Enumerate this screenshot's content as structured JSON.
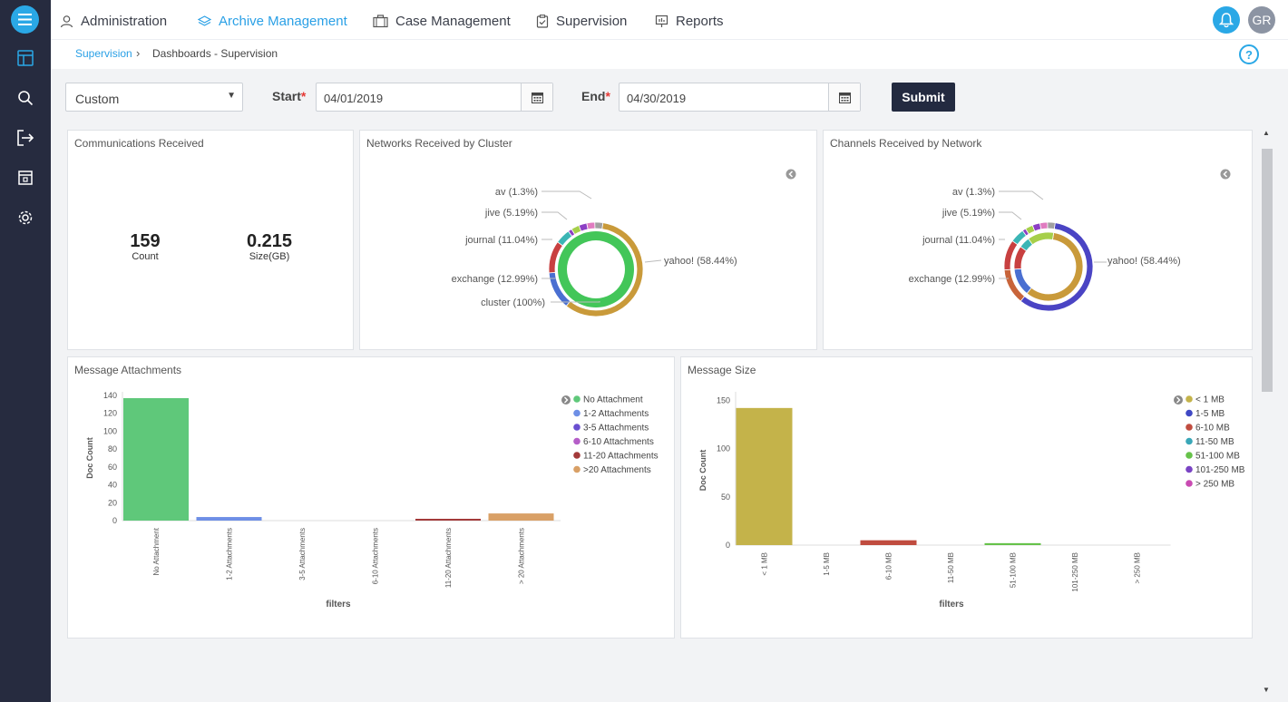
{
  "nav": {
    "items": [
      {
        "label": "Administration",
        "icon": "user-icon"
      },
      {
        "label": "Archive Management",
        "icon": "layers-icon"
      },
      {
        "label": "Case Management",
        "icon": "briefcase-icon"
      },
      {
        "label": "Supervision",
        "icon": "clipboard-check-icon"
      },
      {
        "label": "Reports",
        "icon": "presentation-icon"
      }
    ],
    "active": "Archive Management",
    "user_initials": "GR"
  },
  "sidebar": {
    "icons": [
      "menu-icon",
      "layout-icon",
      "search-icon",
      "logout-icon",
      "archive-icon",
      "gear-icon"
    ]
  },
  "breadcrumb": {
    "parent": "Supervision",
    "separator": "›",
    "current": "Dashboards - Supervision",
    "help": "?"
  },
  "filters": {
    "range_value": "Custom",
    "start_label": "Start",
    "start_value": "04/01/2019",
    "end_label": "End",
    "end_value": "04/30/2019",
    "required_mark": "*",
    "submit_label": "Submit"
  },
  "panels": {
    "communications": {
      "title": "Communications Received",
      "count_value": "159",
      "count_label": "Count",
      "size_value": "0.215",
      "size_label": "Size(GB)"
    },
    "networks": {
      "title": "Networks Received by Cluster"
    },
    "channels": {
      "title": "Channels Received by Network"
    },
    "attachments": {
      "title": "Message Attachments"
    },
    "message_size": {
      "title": "Message Size"
    }
  },
  "colors": {
    "accent": "#2aa8e6",
    "rail": "#262b3f",
    "submit": "#232a40"
  },
  "chart_data": [
    {
      "type": "pie",
      "title": "Networks Received by Cluster",
      "inner_ring": [
        {
          "label": "cluster (100%)",
          "value": 100,
          "color": "#43c659"
        }
      ],
      "outer_ring": [
        {
          "label": "yahoo! (58.44%)",
          "value": 58.44,
          "color": "#c99a3a"
        },
        {
          "label": "exchange (12.99%)",
          "value": 12.99,
          "color": "#4a6fd1"
        },
        {
          "label": "journal (11.04%)",
          "value": 11.04,
          "color": "#c84040"
        },
        {
          "label": "jive (5.19%)",
          "value": 5.19,
          "color": "#3bb5b5"
        },
        {
          "label": "av (1.3%)",
          "value": 1.3,
          "color": "#8c3fc4"
        }
      ]
    },
    {
      "type": "pie",
      "title": "Channels Received by Network",
      "outer_ring": [
        {
          "label": "yahoo! (58.44%)",
          "value": 58.44,
          "color": "#4a44c4"
        },
        {
          "label": "exchange (12.99%)",
          "value": 12.99,
          "color": "#c8643a"
        },
        {
          "label": "journal (11.04%)",
          "value": 11.04,
          "color": "#c84040"
        },
        {
          "label": "jive (5.19%)",
          "value": 5.19,
          "color": "#3bb5b5"
        },
        {
          "label": "av (1.3%)",
          "value": 1.3,
          "color": "#8c3fc4"
        }
      ]
    },
    {
      "type": "bar",
      "title": "Message Attachments",
      "xlabel": "filters",
      "ylabel": "Doc Count",
      "categories": [
        "No Attachment",
        "1-2 Attachments",
        "3-5 Attachments",
        "6-10 Attachments",
        "11-20 Attachments",
        "> 20 Attachments"
      ],
      "legend": [
        "No Attachment",
        "1-2 Attachments",
        "3-5 Attachments",
        "6-10 Attachments",
        "11-20 Attachments",
        ">20 Attachments"
      ],
      "values": [
        137,
        4,
        0,
        0,
        1,
        8
      ],
      "colors": [
        "#5fc87a",
        "#6e8fe6",
        "#6a4fd0",
        "#b55ec8",
        "#a33a3a",
        "#d9a066"
      ],
      "yticks": [
        0,
        20,
        40,
        60,
        80,
        100,
        120,
        140
      ],
      "ylim": [
        0,
        140
      ]
    },
    {
      "type": "bar",
      "title": "Message Size",
      "xlabel": "filters",
      "ylabel": "Doc Count",
      "categories": [
        "< 1 MB",
        "1-5 MB",
        "6-10 MB",
        "11-50 MB",
        "51-100 MB",
        "101-250 MB",
        "> 250 MB"
      ],
      "legend": [
        "< 1 MB",
        "1-5 MB",
        "6-10 MB",
        "11-50 MB",
        "51-100 MB",
        "101-250 MB",
        "> 250 MB"
      ],
      "values": [
        142,
        0,
        5,
        0,
        2,
        0,
        0
      ],
      "colors": [
        "#c4b34a",
        "#3f48c4",
        "#c04c3f",
        "#3aa7b8",
        "#66c24a",
        "#7a44c4",
        "#c94bb2"
      ],
      "yticks": [
        0,
        50,
        100,
        150
      ],
      "ylim": [
        0,
        155
      ]
    }
  ]
}
